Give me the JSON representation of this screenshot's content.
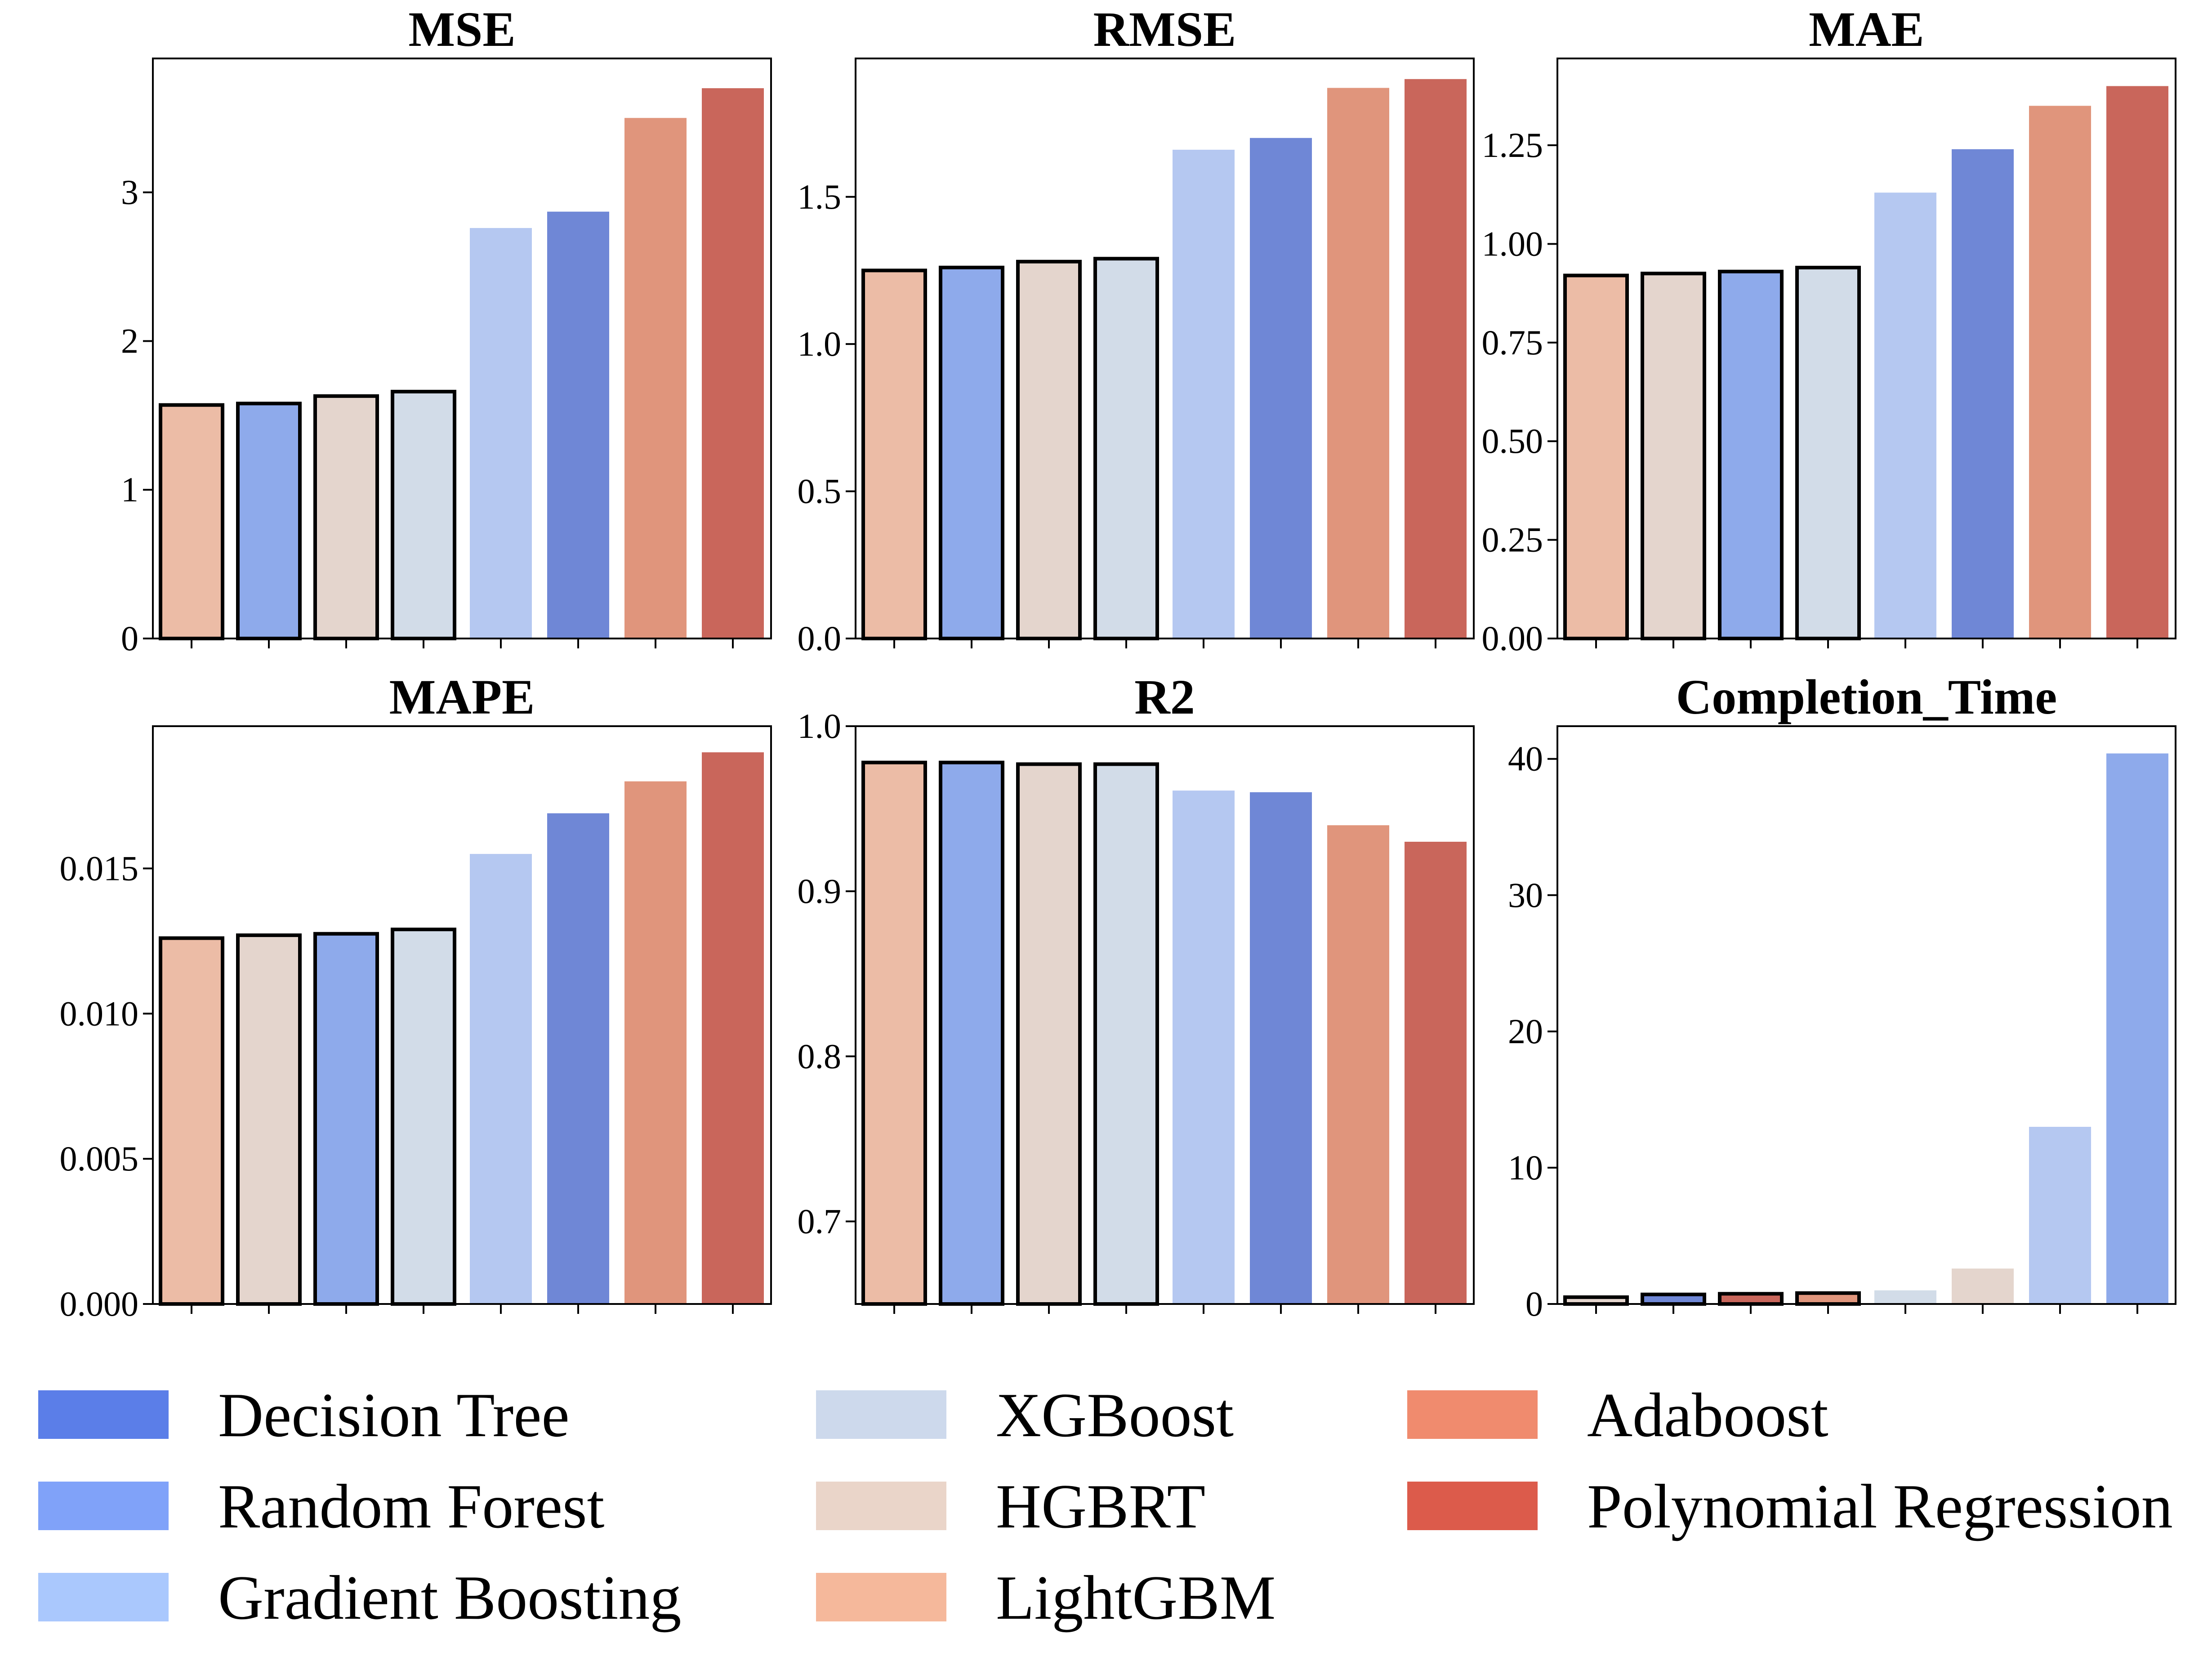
{
  "legend": [
    {
      "label": "Decision Tree",
      "color": "#5b7ee8"
    },
    {
      "label": "Random Forest",
      "color": "#80a2f9"
    },
    {
      "label": "Gradient Boosting",
      "color": "#aac8fd"
    },
    {
      "label": "XGBoost",
      "color": "#cdd9ec"
    },
    {
      "label": "HGBRT",
      "color": "#ead5c9"
    },
    {
      "label": "LightGBM",
      "color": "#f5b89b"
    },
    {
      "label": "Adaboost",
      "color": "#f08b6e"
    },
    {
      "label": "Polynomial Regression",
      "color": "#dc5b4b"
    }
  ],
  "chart_data": [
    {
      "type": "bar",
      "title": "MSE",
      "ylim": [
        0,
        3.9
      ],
      "yticks": [
        0,
        1,
        2,
        3
      ],
      "tick_decimals": 0,
      "bars": [
        {
          "model": "LightGBM",
          "value": 1.57,
          "color": "#ecbca6",
          "outlined": true
        },
        {
          "model": "Random Forest",
          "value": 1.58,
          "color": "#8eaaeb",
          "outlined": true
        },
        {
          "model": "HGBRT",
          "value": 1.63,
          "color": "#e4d5cd",
          "outlined": true
        },
        {
          "model": "XGBoost",
          "value": 1.66,
          "color": "#d2dce8",
          "outlined": true
        },
        {
          "model": "Gradient Boosting",
          "value": 2.76,
          "color": "#b5c8f1",
          "outlined": false
        },
        {
          "model": "Decision Tree",
          "value": 2.87,
          "color": "#6f87d6",
          "outlined": false
        },
        {
          "model": "Adaboost",
          "value": 3.5,
          "color": "#e0957c",
          "outlined": false
        },
        {
          "model": "Polynomial Regression",
          "value": 3.7,
          "color": "#c9665b",
          "outlined": false
        }
      ]
    },
    {
      "type": "bar",
      "title": "RMSE",
      "ylim": [
        0,
        1.97
      ],
      "yticks": [
        0.0,
        0.5,
        1.0,
        1.5
      ],
      "tick_decimals": 1,
      "bars": [
        {
          "model": "LightGBM",
          "value": 1.25,
          "color": "#ecbca6",
          "outlined": true
        },
        {
          "model": "Random Forest",
          "value": 1.26,
          "color": "#8eaaeb",
          "outlined": true
        },
        {
          "model": "HGBRT",
          "value": 1.28,
          "color": "#e4d5cd",
          "outlined": true
        },
        {
          "model": "XGBoost",
          "value": 1.29,
          "color": "#d2dce8",
          "outlined": true
        },
        {
          "model": "Gradient Boosting",
          "value": 1.66,
          "color": "#b5c8f1",
          "outlined": false
        },
        {
          "model": "Decision Tree",
          "value": 1.7,
          "color": "#6f87d6",
          "outlined": false
        },
        {
          "model": "Adaboost",
          "value": 1.87,
          "color": "#e0957c",
          "outlined": false
        },
        {
          "model": "Polynomial Regression",
          "value": 1.9,
          "color": "#c9665b",
          "outlined": false
        }
      ]
    },
    {
      "type": "bar",
      "title": "MAE",
      "ylim": [
        0,
        1.47
      ],
      "yticks": [
        0.0,
        0.25,
        0.5,
        0.75,
        1.0,
        1.25
      ],
      "tick_decimals": 2,
      "bars": [
        {
          "model": "LightGBM",
          "value": 0.92,
          "color": "#ecbca6",
          "outlined": true
        },
        {
          "model": "HGBRT",
          "value": 0.925,
          "color": "#e4d5cd",
          "outlined": true
        },
        {
          "model": "Random Forest",
          "value": 0.93,
          "color": "#8eaaeb",
          "outlined": true
        },
        {
          "model": "XGBoost",
          "value": 0.94,
          "color": "#d2dce8",
          "outlined": true
        },
        {
          "model": "Gradient Boosting",
          "value": 1.13,
          "color": "#b5c8f1",
          "outlined": false
        },
        {
          "model": "Decision Tree",
          "value": 1.24,
          "color": "#6f87d6",
          "outlined": false
        },
        {
          "model": "Adaboost",
          "value": 1.35,
          "color": "#e0957c",
          "outlined": false
        },
        {
          "model": "Polynomial Regression",
          "value": 1.4,
          "color": "#c9665b",
          "outlined": false
        }
      ]
    },
    {
      "type": "bar",
      "title": "MAPE",
      "ylim": [
        0,
        0.0199
      ],
      "yticks": [
        0.0,
        0.005,
        0.01,
        0.015
      ],
      "tick_decimals": 3,
      "bars": [
        {
          "model": "LightGBM",
          "value": 0.0126,
          "color": "#ecbca6",
          "outlined": true
        },
        {
          "model": "HGBRT",
          "value": 0.0127,
          "color": "#e4d5cd",
          "outlined": true
        },
        {
          "model": "Random Forest",
          "value": 0.01275,
          "color": "#8eaaeb",
          "outlined": true
        },
        {
          "model": "XGBoost",
          "value": 0.0129,
          "color": "#d2dce8",
          "outlined": true
        },
        {
          "model": "Gradient Boosting",
          "value": 0.0155,
          "color": "#b5c8f1",
          "outlined": false
        },
        {
          "model": "Decision Tree",
          "value": 0.0169,
          "color": "#6f87d6",
          "outlined": false
        },
        {
          "model": "Adaboost",
          "value": 0.018,
          "color": "#e0957c",
          "outlined": false
        },
        {
          "model": "Polynomial Regression",
          "value": 0.019,
          "color": "#c9665b",
          "outlined": false
        }
      ]
    },
    {
      "type": "bar",
      "title": "R2",
      "ylim": [
        0.65,
        1.0
      ],
      "yticks": [
        0.7,
        0.8,
        0.9,
        1.0
      ],
      "tick_decimals": 1,
      "bars": [
        {
          "model": "LightGBM",
          "value": 0.978,
          "color": "#ecbca6",
          "outlined": true
        },
        {
          "model": "Random Forest",
          "value": 0.978,
          "color": "#8eaaeb",
          "outlined": true
        },
        {
          "model": "HGBRT",
          "value": 0.977,
          "color": "#e4d5cd",
          "outlined": true
        },
        {
          "model": "XGBoost",
          "value": 0.977,
          "color": "#d2dce8",
          "outlined": true
        },
        {
          "model": "Gradient Boosting",
          "value": 0.961,
          "color": "#b5c8f1",
          "outlined": false
        },
        {
          "model": "Decision Tree",
          "value": 0.96,
          "color": "#6f87d6",
          "outlined": false
        },
        {
          "model": "Adaboost",
          "value": 0.94,
          "color": "#e0957c",
          "outlined": false
        },
        {
          "model": "Polynomial Regression",
          "value": 0.93,
          "color": "#c9665b",
          "outlined": false
        }
      ]
    },
    {
      "type": "bar",
      "title": "Completion_Time",
      "ylim": [
        0,
        42.4
      ],
      "yticks": [
        0,
        10,
        20,
        30,
        40
      ],
      "tick_decimals": 0,
      "bars": [
        {
          "model": "HGBRT",
          "value": 0.5,
          "color": "#e4d5cd",
          "outlined": true
        },
        {
          "model": "Decision Tree",
          "value": 0.7,
          "color": "#6f87d6",
          "outlined": true
        },
        {
          "model": "Polynomial Regression",
          "value": 0.75,
          "color": "#c9665b",
          "outlined": true
        },
        {
          "model": "Adaboost",
          "value": 0.8,
          "color": "#e0957c",
          "outlined": true
        },
        {
          "model": "XGBoost",
          "value": 1.0,
          "color": "#d2dce8",
          "outlined": false
        },
        {
          "model": "LightGBM",
          "value": 2.6,
          "color": "#e4d5cd",
          "outlined": false
        },
        {
          "model": "Gradient Boosting",
          "value": 13.0,
          "color": "#b5c8f1",
          "outlined": false
        },
        {
          "model": "Random Forest",
          "value": 40.4,
          "color": "#8eaaeb",
          "outlined": false
        }
      ]
    }
  ]
}
